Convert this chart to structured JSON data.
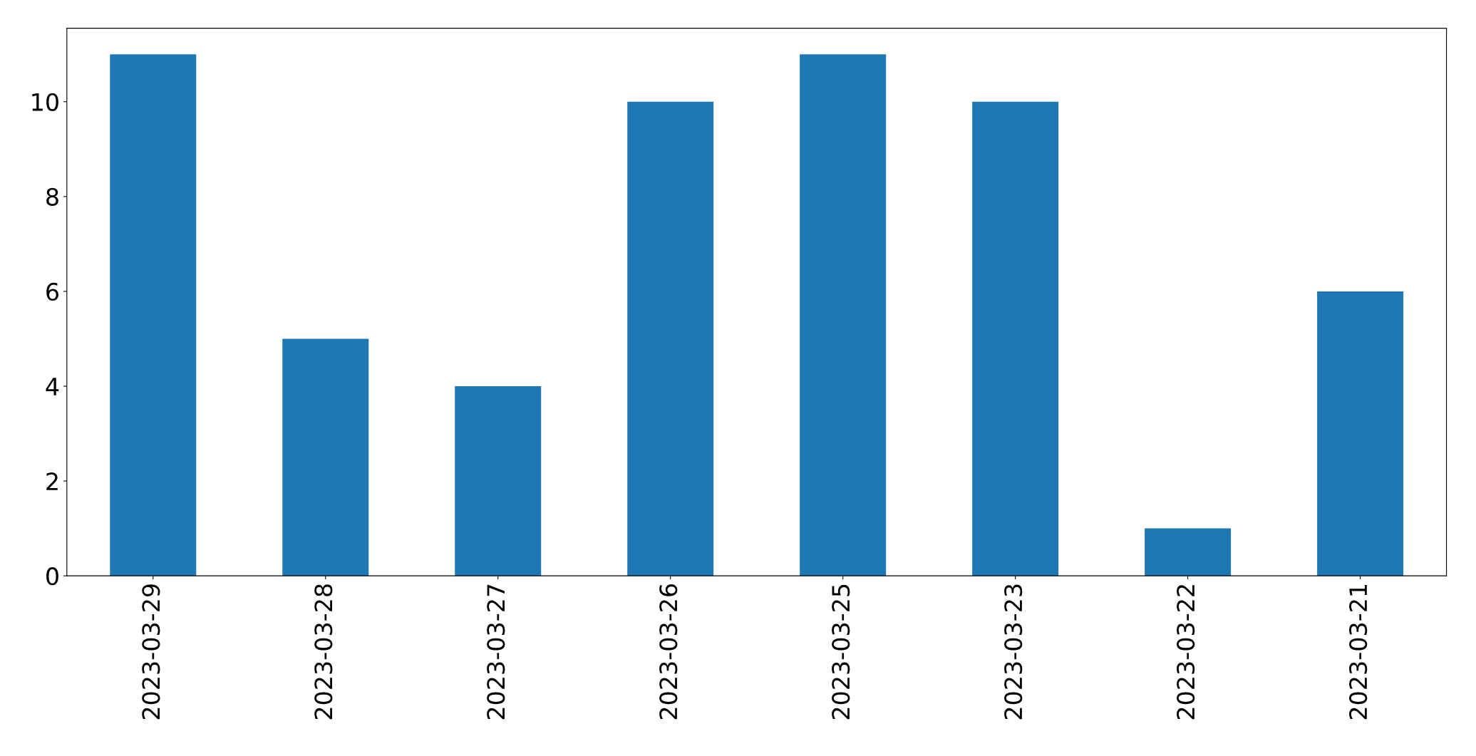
{
  "chart_data": {
    "type": "bar",
    "categories": [
      "2023-03-29",
      "2023-03-28",
      "2023-03-27",
      "2023-03-26",
      "2023-03-25",
      "2023-03-23",
      "2023-03-22",
      "2023-03-21"
    ],
    "values": [
      11,
      5,
      4,
      10,
      11,
      10,
      1,
      6
    ],
    "color": "#1f77b4",
    "ylim": [
      0,
      11.55
    ],
    "yticks": [
      0,
      2,
      4,
      6,
      8,
      10
    ],
    "grid": false,
    "legend": false
  }
}
